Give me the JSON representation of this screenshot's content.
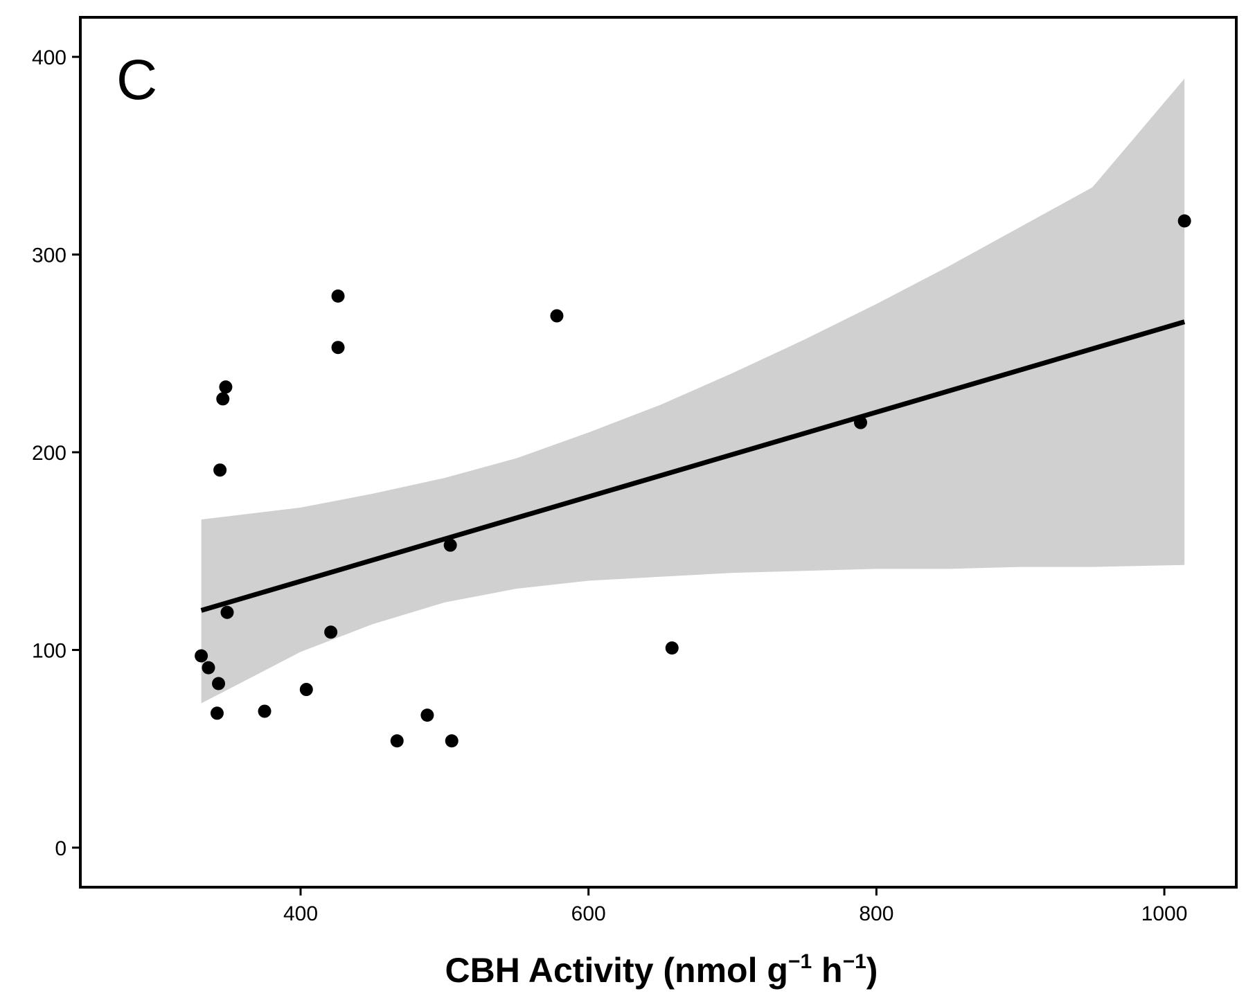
{
  "chart_data": {
    "type": "scatter",
    "panel_label": "C",
    "title": "",
    "ylabel": "",
    "xlabel": {
      "main": "CBH Activity (nmol g",
      "sup1": "−1",
      "mid": " h",
      "sup2": "−1",
      "end": ")"
    },
    "xlim": [
      247,
      1050
    ],
    "ylim": [
      -20,
      420
    ],
    "xticks": [
      400,
      600,
      800,
      1000
    ],
    "yticks": [
      0,
      100,
      200,
      300,
      400
    ],
    "xtick_labels": [
      "400",
      "600",
      "800",
      "1000"
    ],
    "ytick_labels": [
      "0",
      "100",
      "200",
      "300",
      "400"
    ],
    "grid": false,
    "points": [
      {
        "x": 331,
        "y": 97
      },
      {
        "x": 336,
        "y": 91
      },
      {
        "x": 343,
        "y": 83
      },
      {
        "x": 342,
        "y": 68
      },
      {
        "x": 344,
        "y": 191
      },
      {
        "x": 346,
        "y": 227
      },
      {
        "x": 348,
        "y": 233
      },
      {
        "x": 349,
        "y": 119
      },
      {
        "x": 375,
        "y": 69
      },
      {
        "x": 404,
        "y": 80
      },
      {
        "x": 421,
        "y": 109
      },
      {
        "x": 426,
        "y": 279
      },
      {
        "x": 426,
        "y": 253
      },
      {
        "x": 467,
        "y": 54
      },
      {
        "x": 488,
        "y": 67
      },
      {
        "x": 504,
        "y": 153
      },
      {
        "x": 505,
        "y": 54
      },
      {
        "x": 578,
        "y": 269
      },
      {
        "x": 658,
        "y": 101
      },
      {
        "x": 789,
        "y": 215
      },
      {
        "x": 1014,
        "y": 317
      }
    ],
    "fit_line": {
      "x": [
        331,
        1014
      ],
      "y": [
        120,
        266
      ]
    },
    "confidence_band": {
      "x": [
        331,
        400,
        450,
        500,
        550,
        600,
        650,
        700,
        750,
        800,
        850,
        900,
        950,
        1014
      ],
      "upper": [
        166,
        172,
        179,
        187,
        197,
        210,
        224,
        240,
        257,
        275,
        294,
        314,
        334,
        389
      ],
      "lower": [
        73,
        99,
        113,
        124,
        131,
        135,
        137,
        139,
        140,
        141,
        141,
        142,
        142,
        143
      ]
    },
    "colors": {
      "points": "#000000",
      "fit_line": "#000000",
      "band": "#d0d0d0",
      "frame": "#000000"
    }
  }
}
